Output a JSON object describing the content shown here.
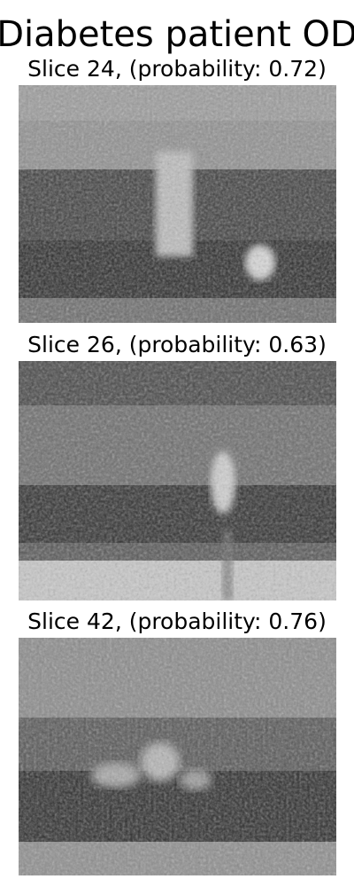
{
  "figure": {
    "title": "Diabetes patient OD",
    "panels": [
      {
        "caption": "Slice 24, (probability: 0.72)"
      },
      {
        "caption": "Slice 26, (probability: 0.63)"
      },
      {
        "caption": "Slice 42, (probability: 0.76)"
      }
    ]
  }
}
